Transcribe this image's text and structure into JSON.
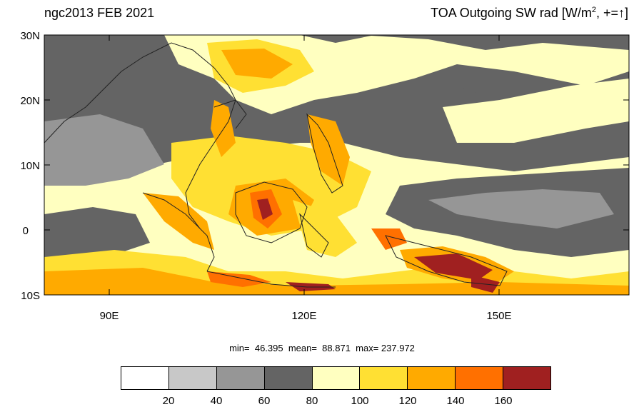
{
  "header": {
    "left_title": "ngc2013 FEB 2021",
    "right_title_prefix": "TOA Outgoing SW rad [W/m",
    "right_title_sup": "2",
    "right_title_suffix": ", +=",
    "right_title_arrow": "↑",
    "right_title_end": "]"
  },
  "map": {
    "lon_range": [
      80,
      170
    ],
    "lat_range": [
      -10,
      30
    ],
    "lat_ticks": [
      "30N",
      "20N",
      "10N",
      "0",
      "10S"
    ],
    "lon_ticks": [
      "90E",
      "120E",
      "150E"
    ]
  },
  "stats": {
    "text": "min=  46.395  mean=  88.871  max= 237.972"
  },
  "colorbar": {
    "colors": [
      "#ffffff",
      "#c8c8c8",
      "#969696",
      "#646464",
      "#ffffc0",
      "#ffe033",
      "#ffaa00",
      "#ff7000",
      "#a02020"
    ],
    "labels": [
      "20",
      "40",
      "60",
      "80",
      "100",
      "120",
      "140",
      "160"
    ]
  }
}
